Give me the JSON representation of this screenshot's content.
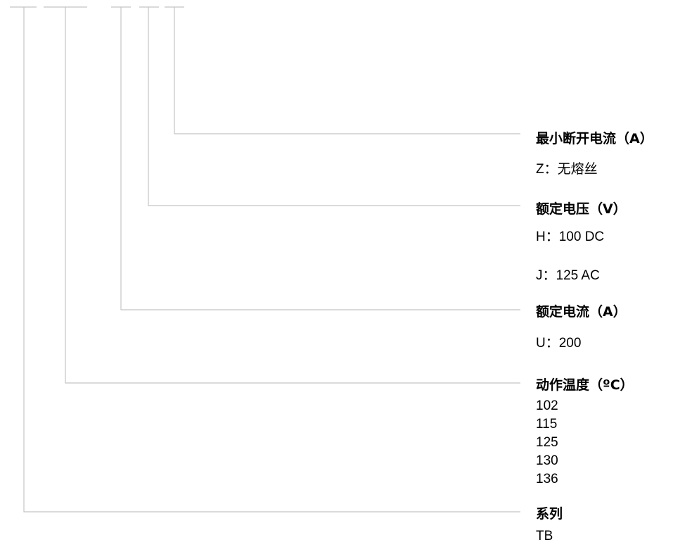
{
  "groups": [
    {
      "heading": "最小断开电流（A）",
      "values": [
        "Z：无熔丝"
      ]
    },
    {
      "heading": "额定电压（V）",
      "values": [
        "H：100 DC",
        "J：125 AC"
      ]
    },
    {
      "heading": "额定电流（A）",
      "values": [
        "U：200"
      ]
    },
    {
      "heading": "动作温度（ºC）",
      "values": [
        "102",
        "115",
        "125",
        "130",
        "136"
      ]
    },
    {
      "heading": "系列",
      "values": [
        "TB"
      ]
    }
  ],
  "colors": {
    "line": "#c4c4c4",
    "text": "#000000"
  }
}
